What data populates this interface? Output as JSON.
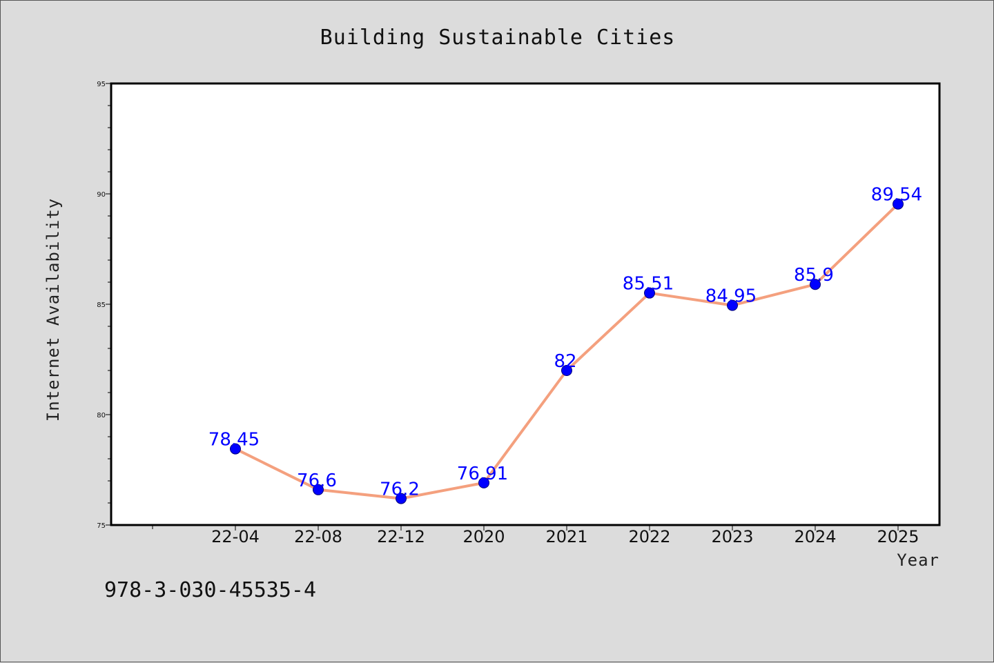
{
  "chart_data": {
    "type": "line",
    "title": "Building Sustainable Cities",
    "xlabel": "Year",
    "ylabel": "Internet Availability",
    "categories": [
      "22-04",
      "22-08",
      "22-12",
      "2020",
      "2021",
      "2022",
      "2023",
      "2024",
      "2025"
    ],
    "series": [
      {
        "values": [
          78.45,
          76.6,
          76.2,
          76.91,
          82,
          85.51,
          84.95,
          85.9,
          89.54
        ],
        "data_labels": [
          "78.45",
          "76.6",
          "76.2",
          "76.91",
          "82",
          "85.51",
          "84.95",
          "85.9",
          "89.54"
        ]
      }
    ],
    "ylim": [
      75,
      95
    ],
    "yticks": [
      "75",
      "80",
      "85",
      "90",
      "95"
    ],
    "grid": false,
    "line_color": "#f4a07e",
    "marker_color": "#0000ff",
    "label_color": "#0000ff"
  },
  "footer": {
    "isbn": "978-3-030-45535-4"
  }
}
